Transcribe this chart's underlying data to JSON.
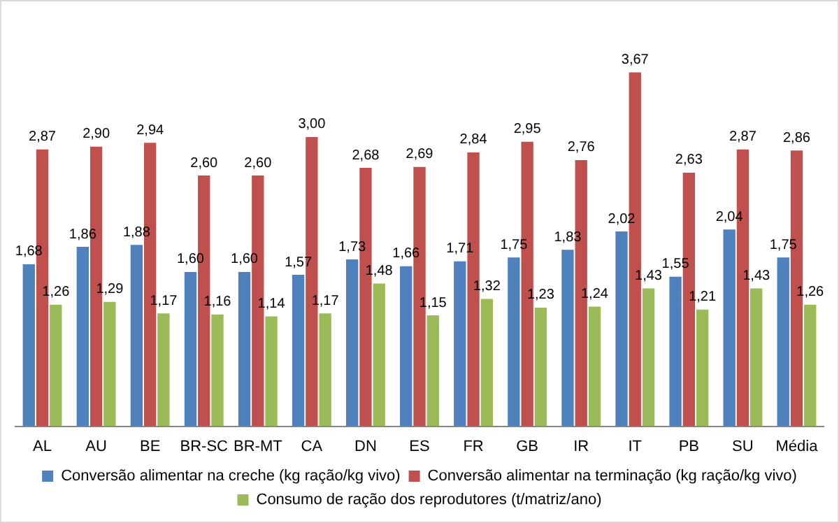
{
  "chart_data": {
    "type": "bar",
    "categories": [
      "AL",
      "AU",
      "BE",
      "BR-SC",
      "BR-MT",
      "CA",
      "DN",
      "ES",
      "FR",
      "GB",
      "IR",
      "IT",
      "PB",
      "SU",
      "Média"
    ],
    "grid": false,
    "legend": "bottom",
    "tick_labels": "x",
    "series": [
      {
        "name": "Conversão alimentar na creche (kg ração/kg vivo)",
        "color": "#4f81bd",
        "values": [
          1.68,
          1.86,
          1.88,
          1.6,
          1.6,
          1.57,
          1.73,
          1.66,
          1.71,
          1.75,
          1.83,
          2.02,
          1.55,
          2.04,
          1.75
        ],
        "value_labels": [
          "1,68",
          "1,86",
          "1,88",
          "1,60",
          "1,60",
          "1,57",
          "1,73",
          "1,66",
          "1,71",
          "1,75",
          "1,83",
          "2,02",
          "1,55",
          "2,04",
          "1,75"
        ]
      },
      {
        "name": "Conversão alimentar na terminação (kg ração/kg vivo)",
        "color": "#c0504d",
        "values": [
          2.87,
          2.9,
          2.94,
          2.6,
          2.6,
          3.0,
          2.68,
          2.69,
          2.84,
          2.95,
          2.76,
          3.67,
          2.63,
          2.87,
          2.86
        ],
        "value_labels": [
          "2,87",
          "2,90",
          "2,94",
          "2,60",
          "2,60",
          "3,00",
          "2,68",
          "2,69",
          "2,84",
          "2,95",
          "2,76",
          "3,67",
          "2,63",
          "2,87",
          "2,86"
        ]
      },
      {
        "name": "Consumo de ração dos reprodutores (t/matriz/ano)",
        "color": "#9bbb59",
        "values": [
          1.26,
          1.29,
          1.17,
          1.16,
          1.14,
          1.17,
          1.48,
          1.15,
          1.32,
          1.23,
          1.24,
          1.43,
          1.21,
          1.43,
          1.26
        ],
        "value_labels": [
          "1,26",
          "1,29",
          "1,17",
          "1,16",
          "1,14",
          "1,17",
          "1,48",
          "1,15",
          "1,32",
          "1,23",
          "1,24",
          "1,43",
          "1,21",
          "1,43",
          "1,26"
        ]
      }
    ]
  }
}
